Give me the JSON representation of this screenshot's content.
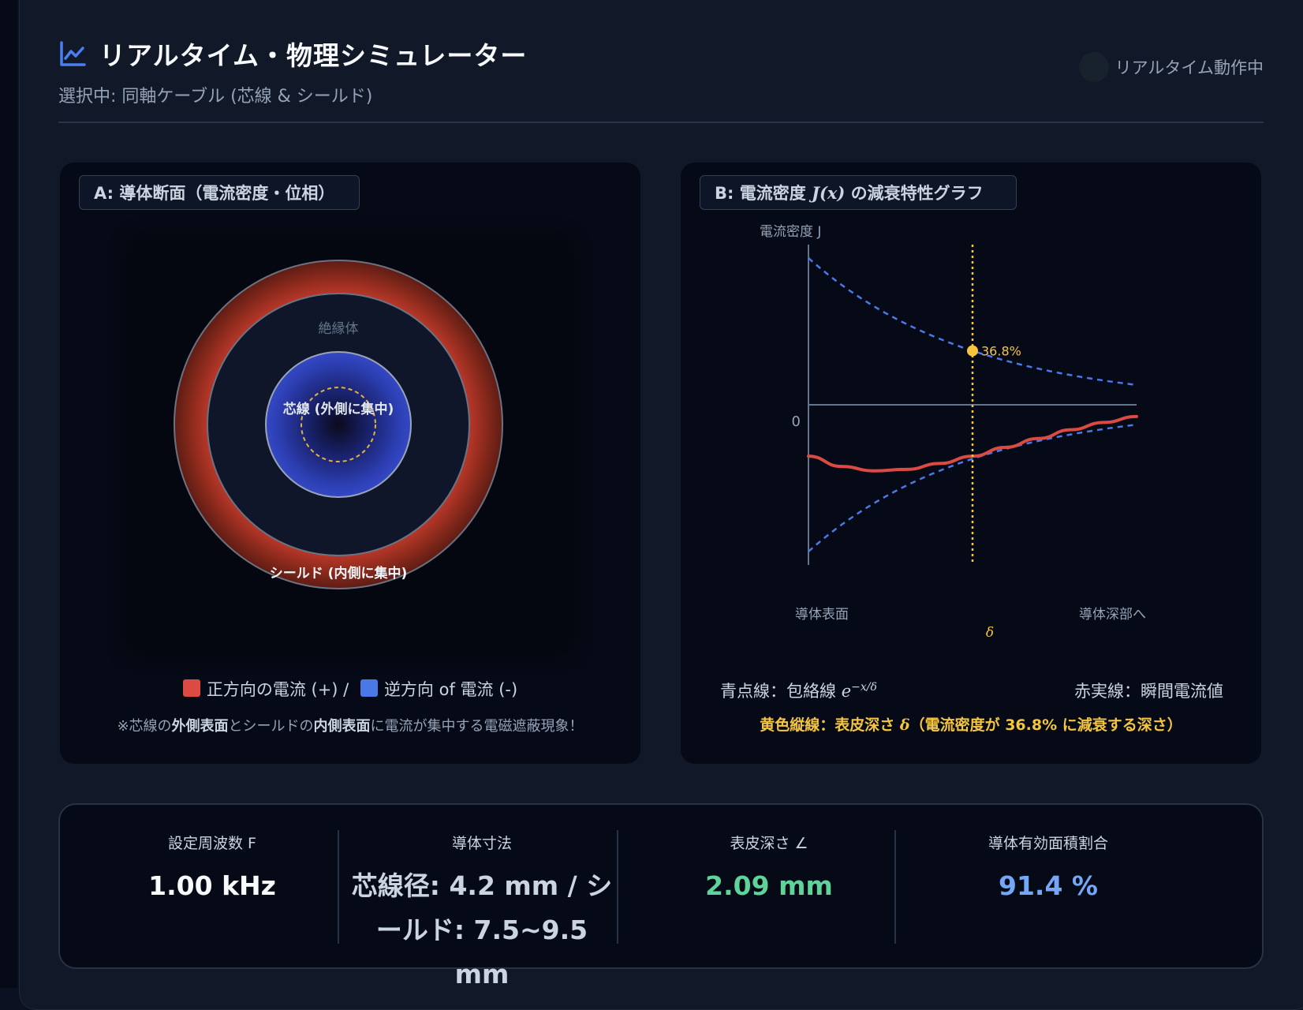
{
  "header": {
    "title": "リアルタイム・物理シミュレーター",
    "subtitle": "選択中: 同軸ケーブル (芯線 & シールド)",
    "status_label": "リアルタイム動作中"
  },
  "panel_a": {
    "tag": "A: 導体断面（電流密度・位相）",
    "label_insulator": "絶縁体",
    "label_core": "芯線 (外側に集中)",
    "label_shield": "シールド (内側に集中)",
    "legend_positive": "正方向の電流 (+) /",
    "legend_negative": "逆方向 of 電流 (-)",
    "note_prefix": "※芯線の",
    "note_bold1": "外側表面",
    "note_mid": "とシールドの",
    "note_bold2": "内側表面",
    "note_suffix": "に電流が集中する電磁遮蔽現象！"
  },
  "panel_b": {
    "tag_prefix": "B: 電流密度",
    "tag_math": "J(x)",
    "tag_suffix": "の減衰特性グラフ",
    "legend_envelope": "青点線：包絡線",
    "legend_envelope_math": "e",
    "legend_envelope_exp": "−x/δ",
    "legend_instant": "赤実線：瞬間電流値",
    "legend_depth_prefix": "黄色縦線：表皮深さ",
    "legend_depth_math": "δ",
    "legend_depth_suffix": "（電流密度が 36.8% に減衰する深さ）"
  },
  "chart_data": {
    "type": "line",
    "ylabel": "電流密度 J",
    "y_zero_label": "0",
    "x_labels": {
      "surface": "導体表面",
      "delta": "δ",
      "deep": "導体深部へ"
    },
    "marker_label": "36.8%",
    "x_range": [
      0,
      2
    ],
    "delta_x": 1,
    "envelope": {
      "amplitude": 1.0,
      "decay": "exp(-x/delta)"
    },
    "instant": {
      "phase_amplitude": -0.35,
      "x": [
        0,
        0.2,
        0.4,
        0.6,
        0.8,
        1.0,
        1.2,
        1.4,
        1.6,
        1.8,
        2.0
      ],
      "y": [
        -0.35,
        -0.42,
        -0.45,
        -0.44,
        -0.4,
        -0.35,
        -0.29,
        -0.23,
        -0.17,
        -0.12,
        -0.08
      ]
    },
    "colors": {
      "envelope": "#4a78e6",
      "instant": "#dc4a44",
      "delta": "#f5c542",
      "axis": "#64748b"
    }
  },
  "stats": [
    {
      "label": "設定周波数 F",
      "value": "1.00 kHz"
    },
    {
      "label": "導体寸法",
      "value": "芯線径: 4.2 mm / シールド: 7.5~9.5 mm"
    },
    {
      "label": "表皮深さ ∠",
      "value": "2.09 mm"
    },
    {
      "label": "導体有効面積割合",
      "value": "91.4 %"
    }
  ]
}
